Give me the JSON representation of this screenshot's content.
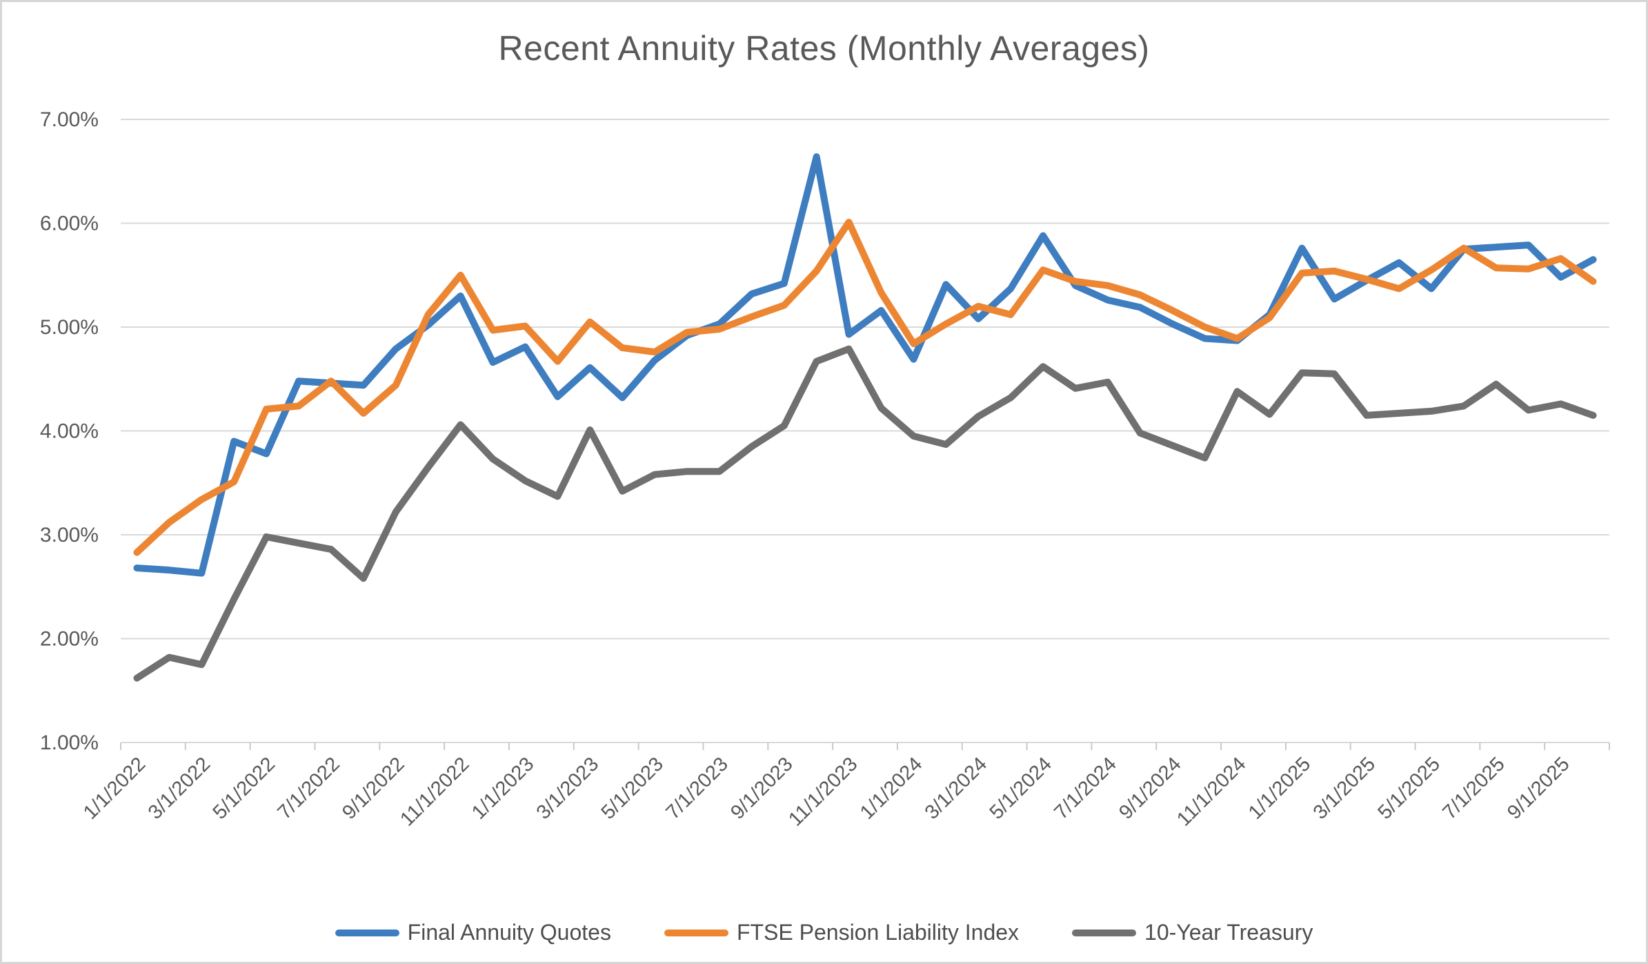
{
  "chart_data": {
    "type": "line",
    "title": "Recent Annuity Rates (Monthly Averages)",
    "x": [
      "1/1/2022",
      "2/1/2022",
      "3/1/2022",
      "4/1/2022",
      "5/1/2022",
      "6/1/2022",
      "7/1/2022",
      "8/1/2022",
      "9/1/2022",
      "10/1/2022",
      "11/1/2022",
      "12/1/2022",
      "1/1/2023",
      "2/1/2023",
      "3/1/2023",
      "4/1/2023",
      "5/1/2023",
      "6/1/2023",
      "7/1/2023",
      "8/1/2023",
      "9/1/2023",
      "10/1/2023",
      "11/1/2023",
      "12/1/2023",
      "1/1/2024",
      "2/1/2024",
      "3/1/2024",
      "4/1/2024",
      "5/1/2024",
      "6/1/2024",
      "7/1/2024",
      "8/1/2024",
      "9/1/2024",
      "10/1/2024",
      "11/1/2024",
      "12/1/2024",
      "1/1/2025",
      "2/1/2025",
      "3/1/2025",
      "4/1/2025",
      "5/1/2025",
      "6/1/2025",
      "7/1/2025",
      "8/1/2025",
      "9/1/2025",
      "10/1/2025"
    ],
    "x_tick_step": 2,
    "y_axis": {
      "min": 1,
      "max": 7,
      "step": 1,
      "format": "percent2"
    },
    "ylim": [
      1,
      7
    ],
    "grid": true,
    "legend_position": "bottom",
    "colors": {
      "gridline": "#d9d9d9",
      "tick": "#c9c9c9",
      "axis_text": "#595959",
      "title_text": "#595959"
    },
    "series": [
      {
        "name": "Final Annuity Quotes",
        "color": "#3e7dbf",
        "values": [
          2.68,
          2.66,
          2.63,
          3.9,
          3.78,
          4.48,
          4.46,
          4.44,
          4.79,
          5.02,
          5.3,
          4.66,
          4.81,
          4.33,
          4.61,
          4.32,
          4.68,
          4.92,
          5.03,
          5.32,
          5.42,
          6.64,
          4.93,
          5.16,
          4.69,
          5.41,
          5.08,
          5.37,
          5.88,
          5.4,
          5.26,
          5.19,
          5.03,
          4.89,
          4.87,
          5.12,
          5.76,
          5.27,
          5.45,
          5.62,
          5.37,
          5.75,
          5.77,
          5.79,
          5.48,
          5.65
        ]
      },
      {
        "name": "FTSE Pension Liability Index",
        "color": "#ed8633",
        "values": [
          2.83,
          3.12,
          3.34,
          3.51,
          4.21,
          4.24,
          4.48,
          4.17,
          4.44,
          5.12,
          5.5,
          4.97,
          5.01,
          4.67,
          5.05,
          4.8,
          4.76,
          4.95,
          4.98,
          5.1,
          5.21,
          5.54,
          6.01,
          5.33,
          4.84,
          5.03,
          5.2,
          5.12,
          5.55,
          5.44,
          5.4,
          5.31,
          5.16,
          5.0,
          4.89,
          5.09,
          5.52,
          5.54,
          5.46,
          5.37,
          5.55,
          5.76,
          5.57,
          5.56,
          5.66,
          5.44
        ]
      },
      {
        "name": "10-Year Treasury",
        "color": "#707070",
        "values": [
          1.62,
          1.82,
          1.75,
          2.38,
          2.98,
          2.92,
          2.86,
          2.58,
          3.22,
          3.65,
          4.06,
          3.73,
          3.52,
          3.37,
          4.01,
          3.42,
          3.58,
          3.61,
          3.61,
          3.85,
          4.05,
          4.67,
          4.79,
          4.22,
          3.95,
          3.87,
          4.14,
          4.32,
          4.62,
          4.41,
          4.47,
          3.98,
          3.86,
          3.74,
          4.38,
          4.16,
          4.56,
          4.55,
          4.15,
          4.17,
          4.19,
          4.24,
          4.45,
          4.2,
          4.26,
          4.15
        ]
      }
    ]
  }
}
